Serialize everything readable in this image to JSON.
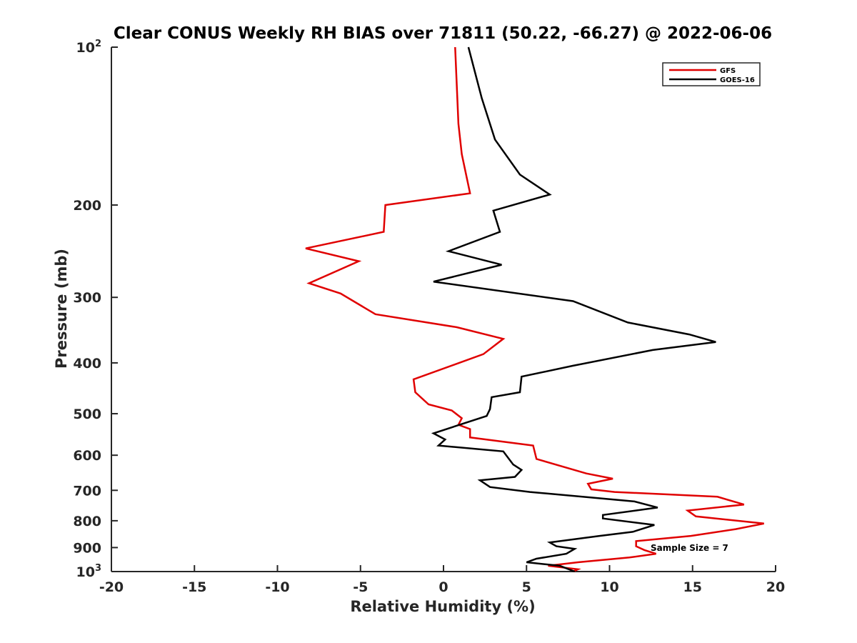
{
  "chart_data": {
    "type": "line",
    "title": "Clear CONUS Weekly RH BIAS over 71811 (50.22, -66.27) @ 2022-06-06",
    "xlabel": "Relative Humidity (%)",
    "ylabel": "Pressure (mb)",
    "xlim": [
      -20,
      20
    ],
    "ylim": [
      100,
      1000
    ],
    "y_scale": "log",
    "y_reversed": true,
    "xticks": [
      -20,
      -15,
      -10,
      -5,
      0,
      5,
      10,
      15,
      20
    ],
    "yticks": [
      {
        "value": 100,
        "base": "10",
        "exp": "2"
      },
      {
        "value": 200,
        "label": "200"
      },
      {
        "value": 300,
        "label": "300"
      },
      {
        "value": 400,
        "label": "400"
      },
      {
        "value": 500,
        "label": "500"
      },
      {
        "value": 600,
        "label": "600"
      },
      {
        "value": 700,
        "label": "700"
      },
      {
        "value": 800,
        "label": "800"
      },
      {
        "value": 900,
        "label": "900"
      },
      {
        "value": 1000,
        "base": "10",
        "exp": "3"
      }
    ],
    "grid": false,
    "legend_position": "top-right",
    "annotation": "Sample Size = 7",
    "series": [
      {
        "name": "GFS",
        "color": "#e00000",
        "points": [
          [
            0.7,
            100
          ],
          [
            0.9,
            140
          ],
          [
            1.1,
            160
          ],
          [
            1.6,
            190
          ],
          [
            -3.5,
            200
          ],
          [
            -3.6,
            225
          ],
          [
            -8.3,
            242
          ],
          [
            -5.1,
            256
          ],
          [
            -8.1,
            282
          ],
          [
            -6.2,
            295
          ],
          [
            -4.1,
            323
          ],
          [
            0.8,
            342
          ],
          [
            3.6,
            360
          ],
          [
            2.4,
            385
          ],
          [
            -1.8,
            430
          ],
          [
            -1.7,
            455
          ],
          [
            -0.9,
            480
          ],
          [
            0.5,
            493
          ],
          [
            1.1,
            510
          ],
          [
            0.9,
            525
          ],
          [
            1.6,
            535
          ],
          [
            1.6,
            555
          ],
          [
            5.4,
            575
          ],
          [
            5.6,
            610
          ],
          [
            8.6,
            650
          ],
          [
            10.2,
            665
          ],
          [
            8.7,
            680
          ],
          [
            8.9,
            697
          ],
          [
            10.3,
            705
          ],
          [
            16.5,
            720
          ],
          [
            18.1,
            745
          ],
          [
            14.7,
            765
          ],
          [
            15.2,
            785
          ],
          [
            19.3,
            810
          ],
          [
            17.6,
            830
          ],
          [
            14.9,
            855
          ],
          [
            11.6,
            875
          ],
          [
            11.6,
            895
          ],
          [
            12.1,
            910
          ],
          [
            12.8,
            925
          ],
          [
            11.2,
            940
          ],
          [
            8.1,
            960
          ],
          [
            6.3,
            975
          ],
          [
            8.1,
            990
          ],
          [
            7.8,
            1000
          ]
        ]
      },
      {
        "name": "GOES-16",
        "color": "#000000",
        "points": [
          [
            1.5,
            100
          ],
          [
            2.3,
            125
          ],
          [
            3.1,
            150
          ],
          [
            4.6,
            175
          ],
          [
            6.4,
            191
          ],
          [
            3.0,
            205
          ],
          [
            3.4,
            225
          ],
          [
            0.3,
            245
          ],
          [
            3.5,
            260
          ],
          [
            -0.6,
            280
          ],
          [
            7.8,
            305
          ],
          [
            11.1,
            335
          ],
          [
            14.8,
            353
          ],
          [
            16.4,
            365
          ],
          [
            12.6,
            378
          ],
          [
            7.8,
            405
          ],
          [
            4.7,
            425
          ],
          [
            4.6,
            455
          ],
          [
            2.9,
            465
          ],
          [
            2.8,
            490
          ],
          [
            2.6,
            505
          ],
          [
            -0.6,
            545
          ],
          [
            0.1,
            560
          ],
          [
            -0.3,
            575
          ],
          [
            3.6,
            590
          ],
          [
            4.2,
            625
          ],
          [
            4.7,
            640
          ],
          [
            4.3,
            660
          ],
          [
            2.2,
            670
          ],
          [
            2.8,
            690
          ],
          [
            5.2,
            705
          ],
          [
            11.5,
            735
          ],
          [
            12.9,
            755
          ],
          [
            9.6,
            780
          ],
          [
            9.6,
            792
          ],
          [
            12.7,
            815
          ],
          [
            11.4,
            840
          ],
          [
            9.4,
            855
          ],
          [
            6.4,
            880
          ],
          [
            6.8,
            895
          ],
          [
            7.9,
            905
          ],
          [
            7.4,
            925
          ],
          [
            5.6,
            945
          ],
          [
            5.0,
            960
          ],
          [
            7.0,
            975
          ],
          [
            7.9,
            1000
          ]
        ]
      }
    ]
  }
}
